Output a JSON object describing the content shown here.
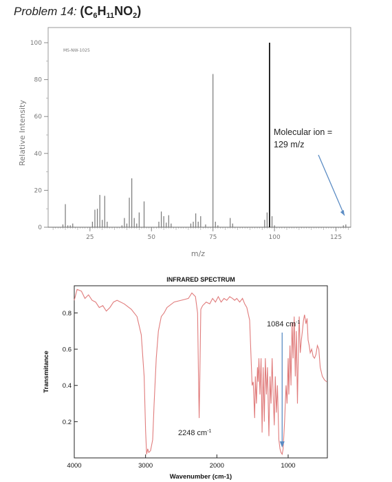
{
  "problem": {
    "lead": "Problem 14:",
    "formula_parts": [
      "(C",
      "6",
      "H",
      "11",
      "NO",
      "2",
      ")"
    ]
  },
  "chart_data": [
    {
      "type": "bar",
      "code": "MS-NW-1025",
      "xlabel": "m/z",
      "ylabel": "Relative Intensity",
      "xlim": [
        8,
        131
      ],
      "ylim": [
        0,
        100
      ],
      "xticks": [
        25,
        50,
        75,
        100,
        125
      ],
      "yticks": [
        0,
        20,
        40,
        60,
        80,
        100
      ],
      "peaks": [
        {
          "mz": 14,
          "i": 1.5
        },
        {
          "mz": 15,
          "i": 12.5
        },
        {
          "mz": 16,
          "i": 1
        },
        {
          "mz": 17,
          "i": 1
        },
        {
          "mz": 18,
          "i": 2
        },
        {
          "mz": 26,
          "i": 3
        },
        {
          "mz": 27,
          "i": 9.5
        },
        {
          "mz": 28,
          "i": 10
        },
        {
          "mz": 29,
          "i": 17.5
        },
        {
          "mz": 30,
          "i": 4
        },
        {
          "mz": 31,
          "i": 17
        },
        {
          "mz": 32,
          "i": 3
        },
        {
          "mz": 38,
          "i": 1
        },
        {
          "mz": 39,
          "i": 5
        },
        {
          "mz": 40,
          "i": 2
        },
        {
          "mz": 41,
          "i": 16
        },
        {
          "mz": 42,
          "i": 26.5
        },
        {
          "mz": 43,
          "i": 5
        },
        {
          "mz": 44,
          "i": 2
        },
        {
          "mz": 45,
          "i": 8
        },
        {
          "mz": 47,
          "i": 14
        },
        {
          "mz": 53,
          "i": 3
        },
        {
          "mz": 54,
          "i": 8.5
        },
        {
          "mz": 55,
          "i": 6
        },
        {
          "mz": 56,
          "i": 2.5
        },
        {
          "mz": 57,
          "i": 6.5
        },
        {
          "mz": 58,
          "i": 2
        },
        {
          "mz": 66,
          "i": 2
        },
        {
          "mz": 67,
          "i": 3
        },
        {
          "mz": 68,
          "i": 7.5
        },
        {
          "mz": 69,
          "i": 3
        },
        {
          "mz": 70,
          "i": 6
        },
        {
          "mz": 72,
          "i": 1.5
        },
        {
          "mz": 75,
          "i": 83
        },
        {
          "mz": 76,
          "i": 3
        },
        {
          "mz": 77,
          "i": 1
        },
        {
          "mz": 82,
          "i": 5
        },
        {
          "mz": 83,
          "i": 2
        },
        {
          "mz": 96,
          "i": 4
        },
        {
          "mz": 97,
          "i": 8
        },
        {
          "mz": 98,
          "i": 100
        },
        {
          "mz": 99,
          "i": 6
        },
        {
          "mz": 100,
          "i": 1
        },
        {
          "mz": 128,
          "i": 1
        },
        {
          "mz": 129,
          "i": 1.5
        }
      ],
      "annotation": {
        "lines": [
          "Molecular ion =",
          "129 m/z"
        ],
        "arrow_to_mz": 129
      }
    },
    {
      "type": "line",
      "title": "INFRARED SPECTRUM",
      "xlabel": "Wavenumber (cm-1)",
      "ylabel": "Transmitance",
      "xlim": [
        4000,
        450
      ],
      "ylim": [
        0,
        0.95
      ],
      "xticks": [
        4000,
        3000,
        2000,
        1000
      ],
      "yticks": [
        0.2,
        0.4,
        0.6,
        0.8
      ],
      "yticklabels": [
        "0.2",
        "0.4",
        "0.6",
        "0.8"
      ],
      "points": [
        [
          4000,
          0.87
        ],
        [
          3960,
          0.93
        ],
        [
          3900,
          0.92
        ],
        [
          3850,
          0.88
        ],
        [
          3800,
          0.9
        ],
        [
          3750,
          0.87
        ],
        [
          3700,
          0.86
        ],
        [
          3650,
          0.83
        ],
        [
          3600,
          0.84
        ],
        [
          3550,
          0.81
        ],
        [
          3500,
          0.83
        ],
        [
          3450,
          0.86
        ],
        [
          3400,
          0.87
        ],
        [
          3300,
          0.85
        ],
        [
          3200,
          0.82
        ],
        [
          3120,
          0.78
        ],
        [
          3060,
          0.68
        ],
        [
          3020,
          0.45
        ],
        [
          3000,
          0.15
        ],
        [
          2985,
          0.02
        ],
        [
          2970,
          0.05
        ],
        [
          2955,
          0.03
        ],
        [
          2930,
          0.04
        ],
        [
          2900,
          0.1
        ],
        [
          2880,
          0.3
        ],
        [
          2850,
          0.55
        ],
        [
          2820,
          0.7
        ],
        [
          2780,
          0.78
        ],
        [
          2740,
          0.8
        ],
        [
          2700,
          0.83
        ],
        [
          2600,
          0.86
        ],
        [
          2500,
          0.87
        ],
        [
          2400,
          0.88
        ],
        [
          2350,
          0.91
        ],
        [
          2300,
          0.89
        ],
        [
          2270,
          0.8
        ],
        [
          2256,
          0.4
        ],
        [
          2248,
          0.22
        ],
        [
          2240,
          0.4
        ],
        [
          2225,
          0.82
        ],
        [
          2200,
          0.84
        ],
        [
          2150,
          0.86
        ],
        [
          2100,
          0.85
        ],
        [
          2060,
          0.88
        ],
        [
          2020,
          0.86
        ],
        [
          1980,
          0.89
        ],
        [
          1940,
          0.86
        ],
        [
          1900,
          0.88
        ],
        [
          1860,
          0.87
        ],
        [
          1820,
          0.89
        ],
        [
          1780,
          0.88
        ],
        [
          1750,
          0.87
        ],
        [
          1720,
          0.88
        ],
        [
          1680,
          0.86
        ],
        [
          1640,
          0.88
        ],
        [
          1610,
          0.85
        ],
        [
          1580,
          0.83
        ],
        [
          1540,
          0.76
        ],
        [
          1520,
          0.55
        ],
        [
          1505,
          0.4
        ],
        [
          1490,
          0.42
        ],
        [
          1470,
          0.22
        ],
        [
          1460,
          0.45
        ],
        [
          1445,
          0.3
        ],
        [
          1430,
          0.5
        ],
        [
          1420,
          0.42
        ],
        [
          1410,
          0.55
        ],
        [
          1395,
          0.35
        ],
        [
          1380,
          0.55
        ],
        [
          1365,
          0.14
        ],
        [
          1350,
          0.5
        ],
        [
          1335,
          0.2
        ],
        [
          1320,
          0.55
        ],
        [
          1305,
          0.35
        ],
        [
          1290,
          0.5
        ],
        [
          1270,
          0.12
        ],
        [
          1255,
          0.45
        ],
        [
          1240,
          0.3
        ],
        [
          1225,
          0.55
        ],
        [
          1210,
          0.35
        ],
        [
          1195,
          0.18
        ],
        [
          1180,
          0.45
        ],
        [
          1165,
          0.25
        ],
        [
          1150,
          0.4
        ],
        [
          1130,
          0.1
        ],
        [
          1115,
          0.05
        ],
        [
          1100,
          0.03
        ],
        [
          1084,
          0.02
        ],
        [
          1070,
          0.05
        ],
        [
          1050,
          0.2
        ],
        [
          1030,
          0.4
        ],
        [
          1015,
          0.3
        ],
        [
          1000,
          0.55
        ],
        [
          990,
          0.35
        ],
        [
          975,
          0.62
        ],
        [
          960,
          0.4
        ],
        [
          945,
          0.75
        ],
        [
          930,
          0.55
        ],
        [
          915,
          0.78
        ],
        [
          900,
          0.45
        ],
        [
          885,
          0.7
        ],
        [
          870,
          0.3
        ],
        [
          855,
          0.62
        ],
        [
          845,
          0.78
        ],
        [
          830,
          0.58
        ],
        [
          815,
          0.65
        ],
        [
          800,
          0.7
        ],
        [
          785,
          0.76
        ],
        [
          770,
          0.79
        ],
        [
          750,
          0.74
        ],
        [
          735,
          0.77
        ],
        [
          720,
          0.65
        ],
        [
          705,
          0.62
        ],
        [
          690,
          0.58
        ],
        [
          670,
          0.6
        ],
        [
          650,
          0.56
        ],
        [
          630,
          0.55
        ],
        [
          610,
          0.57
        ],
        [
          590,
          0.62
        ],
        [
          570,
          0.6
        ],
        [
          550,
          0.5
        ],
        [
          520,
          0.45
        ],
        [
          490,
          0.43
        ],
        [
          460,
          0.42
        ]
      ],
      "annotations": [
        {
          "text": "1084 cm",
          "sup": "-1",
          "x": 1084
        },
        {
          "text": "2248 cm",
          "sup": "-1",
          "x": 2248
        }
      ]
    }
  ]
}
